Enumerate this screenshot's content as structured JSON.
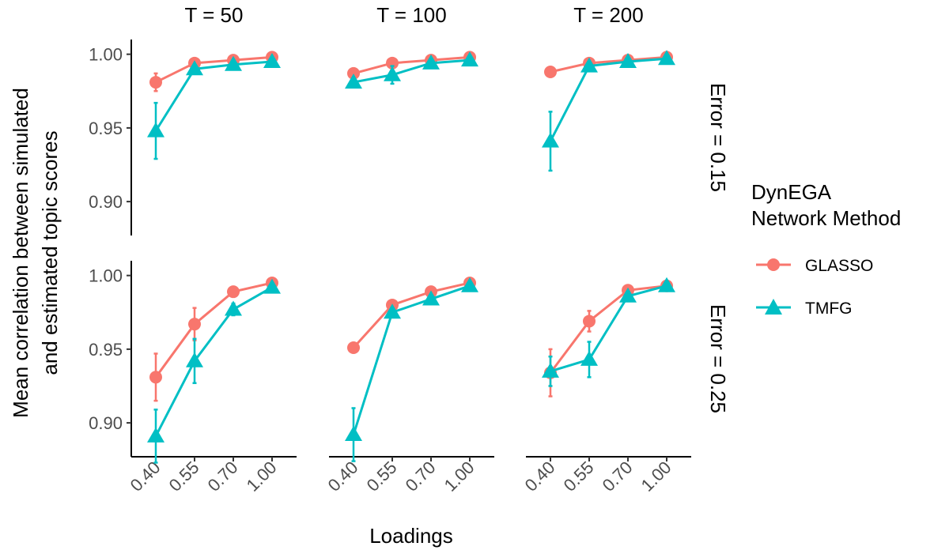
{
  "chart_data": {
    "type": "line",
    "columns": [
      "T = 50",
      "T = 100",
      "T = 200"
    ],
    "rows": [
      "Error = 0.15",
      "Error = 0.25"
    ],
    "categories": [
      "0.40",
      "0.55",
      "0.70",
      "1.00"
    ],
    "xlabel": "Loadings",
    "ylabel_lines": [
      "Mean correlation between simulated",
      "and estimated topic scores"
    ],
    "yticks": [
      "0.90",
      "0.95",
      "1.00"
    ],
    "ylim": [
      0.877,
      1.01
    ],
    "legend": {
      "title_lines": [
        "DynEGA",
        "Network Method"
      ],
      "position": "right"
    },
    "series": [
      {
        "name": "GLASSO",
        "color": "#F8766D",
        "marker": "circle",
        "panels": [
          [
            {
              "values": [
                0.981,
                0.994,
                0.996,
                0.998
              ],
              "err": [
                0.006,
                0.002,
                0.001,
                0.001
              ]
            },
            {
              "values": [
                0.931,
                0.967,
                0.989,
                0.995
              ],
              "err": [
                0.016,
                0.011,
                0.002,
                0.001
              ]
            }
          ],
          [
            {
              "values": [
                0.987,
                0.994,
                0.996,
                0.998
              ],
              "err": [
                0.001,
                0.001,
                0.001,
                0.001
              ]
            },
            {
              "values": [
                0.951,
                0.98,
                0.989,
                0.995
              ],
              "err": [
                0.001,
                0.002,
                0.001,
                0.001
              ]
            }
          ],
          [
            {
              "values": [
                0.988,
                0.994,
                0.996,
                0.998
              ],
              "err": [
                0.001,
                0.001,
                0.001,
                0.001
              ]
            },
            {
              "values": [
                0.934,
                0.969,
                0.99,
                0.993
              ],
              "err": [
                0.016,
                0.007,
                0.002,
                0.001
              ]
            }
          ]
        ]
      },
      {
        "name": "TMFG",
        "color": "#00BFC4",
        "marker": "triangle",
        "panels": [
          [
            {
              "values": [
                0.948,
                0.99,
                0.993,
                0.995
              ],
              "err": [
                0.019,
                0.002,
                0.001,
                0.001
              ]
            },
            {
              "values": [
                0.891,
                0.942,
                0.977,
                0.992
              ],
              "err": [
                0.018,
                0.015,
                0.004,
                0.001
              ]
            }
          ],
          [
            {
              "values": [
                0.981,
                0.986,
                0.994,
                0.996
              ],
              "err": [
                0.001,
                0.006,
                0.001,
                0.001
              ]
            },
            {
              "values": [
                0.892,
                0.975,
                0.984,
                0.993
              ],
              "err": [
                0.018,
                0.001,
                0.002,
                0.001
              ]
            }
          ],
          [
            {
              "values": [
                0.941,
                0.992,
                0.995,
                0.997
              ],
              "err": [
                0.02,
                0.002,
                0.001,
                0.001
              ]
            },
            {
              "values": [
                0.935,
                0.943,
                0.986,
                0.993
              ],
              "err": [
                0.01,
                0.012,
                0.002,
                0.001
              ]
            }
          ]
        ]
      }
    ]
  }
}
